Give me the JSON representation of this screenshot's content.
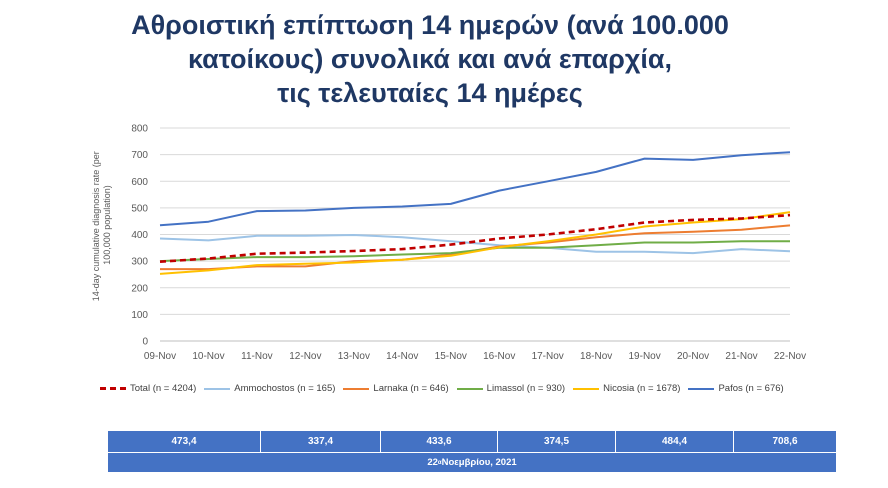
{
  "title_lines": [
    "Αθροιστική επίπτωση 14 ημερών (ανά 100.000",
    "κατοίκους) συνολικά και ανά επαρχία,",
    "τις τελευταίες 14 ημέρες"
  ],
  "chart_data": {
    "type": "line",
    "ylabel": "14-day cumulative diagnosis rate (per 100,000 population)",
    "ylabel_lines": [
      "14-day cumulative diagnosis rate (per",
      "100,000 population)"
    ],
    "ylim": [
      0,
      800
    ],
    "yticks": [
      0,
      100,
      200,
      300,
      400,
      500,
      600,
      700,
      800
    ],
    "grid": true,
    "legend_position": "bottom",
    "categories": [
      "09-Nov",
      "10-Nov",
      "11-Nov",
      "12-Nov",
      "13-Nov",
      "14-Nov",
      "15-Nov",
      "16-Nov",
      "17-Nov",
      "18-Nov",
      "19-Nov",
      "20-Nov",
      "21-Nov",
      "22-Nov"
    ],
    "series": [
      {
        "name": "Total (n = 4204)",
        "color": "#C00000",
        "dashed": true,
        "values": [
          298,
          310,
          328,
          332,
          338,
          345,
          362,
          385,
          400,
          420,
          445,
          455,
          460,
          473
        ]
      },
      {
        "name": "Ammochostos (n = 165)",
        "color": "#9DC3E6",
        "dashed": false,
        "values": [
          385,
          378,
          395,
          395,
          398,
          390,
          375,
          360,
          350,
          335,
          335,
          330,
          345,
          337
        ]
      },
      {
        "name": "Larnaka (n = 646)",
        "color": "#ED7D31",
        "dashed": false,
        "values": [
          270,
          270,
          280,
          280,
          300,
          305,
          325,
          355,
          370,
          390,
          405,
          410,
          418,
          434
        ]
      },
      {
        "name": "Limassol (n = 930)",
        "color": "#70AD47",
        "dashed": false,
        "values": [
          300,
          308,
          315,
          315,
          318,
          325,
          330,
          350,
          350,
          360,
          370,
          370,
          375,
          375
        ]
      },
      {
        "name": "Nicosia (n = 1678)",
        "color": "#FFC000",
        "dashed": false,
        "values": [
          252,
          265,
          285,
          290,
          295,
          305,
          320,
          352,
          375,
          400,
          430,
          445,
          458,
          484
        ]
      },
      {
        "name": "Pafos (n = 676)",
        "color": "#4472C4",
        "dashed": false,
        "values": [
          435,
          448,
          488,
          490,
          500,
          505,
          515,
          565,
          600,
          635,
          685,
          680,
          698,
          709
        ]
      }
    ]
  },
  "summary": {
    "values": [
      "473,4",
      "337,4",
      "433,6",
      "374,5",
      "484,4",
      "708,6"
    ],
    "date_prefix": "22",
    "date_sup": "α",
    "date_suffix": " Νοεμβρίου, 2021"
  }
}
